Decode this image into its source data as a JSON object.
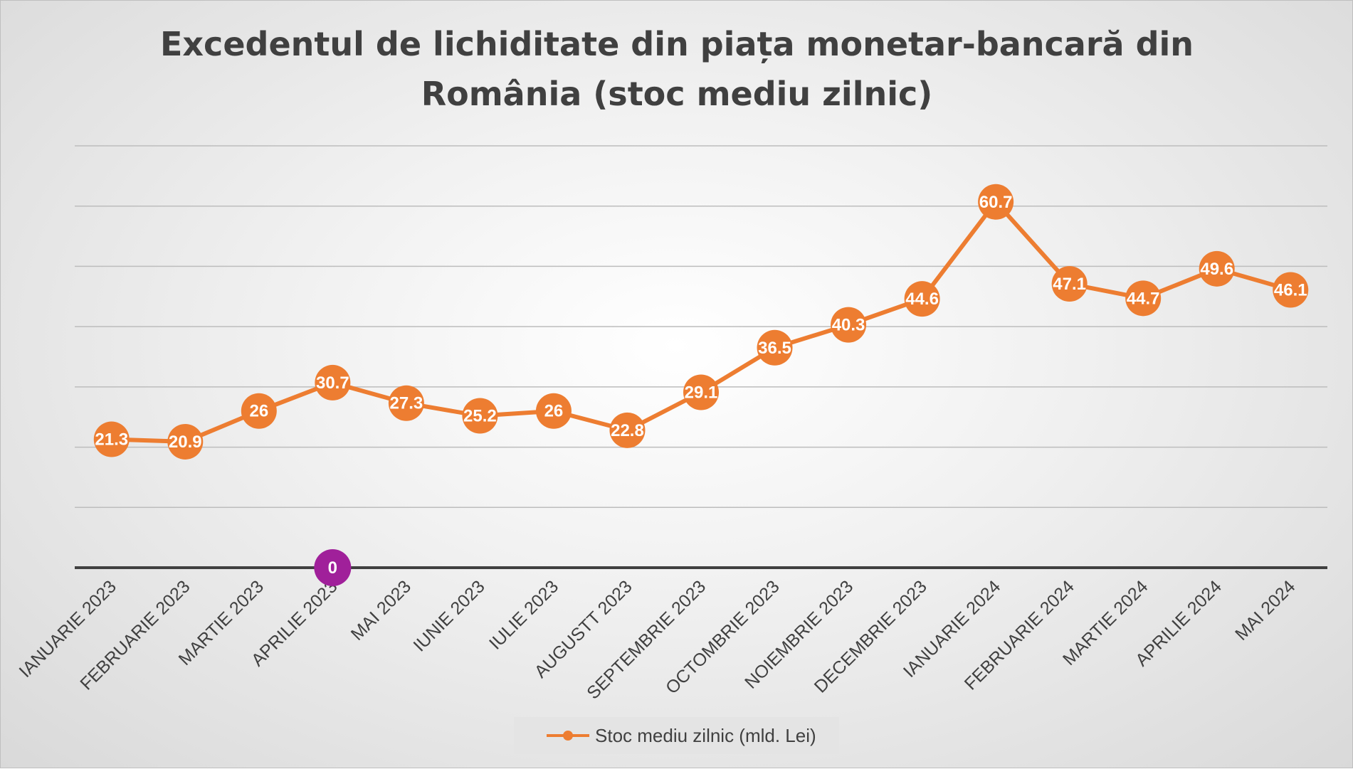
{
  "chart_data": {
    "type": "line",
    "title_lines": [
      "Excedentul de lichiditate din piața monetar-bancară din",
      "România (stoc mediu zilnic)"
    ],
    "categories": [
      "IANUARIE 2023",
      "FEBRUARIE 2023",
      "MARTIE 2023",
      "APRILIE 2023",
      "MAI 2023",
      "IUNIE 2023",
      "IULIE 2023",
      "AUGUSTT 2023",
      "SEPTEMBRIE 2023",
      "OCTOMBRIE 2023",
      "NOIEMBRIE 2023",
      "DECEMBRIE 2023",
      "IANUARIE 2024",
      "FEBRUARIE 2024",
      "MARTIE 2024",
      "APRILIE 2024",
      "MAI 2024"
    ],
    "series": [
      {
        "name": "Stoc mediu zilnic (mld. Lei)",
        "values": [
          21.3,
          20.9,
          26,
          30.7,
          27.3,
          25.2,
          26,
          22.8,
          29.1,
          36.5,
          40.3,
          44.6,
          60.7,
          47.1,
          44.7,
          49.6,
          46.1
        ],
        "labels": [
          "21.3",
          "20.9",
          "26",
          "30.7",
          "27.3",
          "25.2",
          "26",
          "22.8",
          "29.1",
          "36.5",
          "40.3",
          "44.6",
          "60.7",
          "47.1",
          "44.7",
          "49.6",
          "46.1"
        ],
        "color": "#ED7D31"
      }
    ],
    "zero_marker": {
      "category_index": 3,
      "value": 0,
      "label": "0",
      "color": "#A0209A"
    },
    "ylim": [
      0,
      70
    ],
    "y_gridline_step": 10,
    "grid": true,
    "y_tick_labels_shown": false,
    "legend_position": "bottom",
    "colors": {
      "axis": "#404040",
      "gridline": "#bdbdbd"
    }
  }
}
